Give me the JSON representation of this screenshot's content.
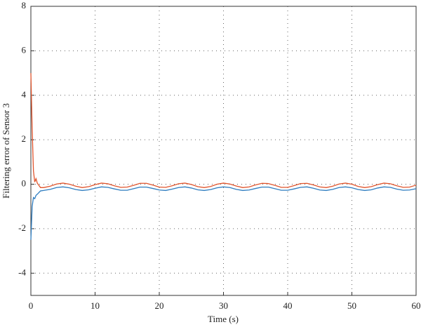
{
  "chart_data": {
    "type": "line",
    "xlabel": "Time (s)",
    "ylabel": "Filtering error of Sensor 3",
    "x": [
      0,
      0.2,
      0.4,
      0.6,
      0.8,
      1,
      1.5,
      2,
      3,
      4,
      5,
      6,
      7,
      8,
      9,
      10,
      11,
      12,
      13,
      14,
      15,
      16,
      17,
      18,
      19,
      20,
      21,
      22,
      23,
      24,
      25,
      26,
      27,
      28,
      29,
      30,
      31,
      32,
      33,
      34,
      35,
      36,
      37,
      38,
      39,
      40,
      41,
      42,
      43,
      44,
      45,
      46,
      47,
      48,
      49,
      50,
      51,
      52,
      53,
      54,
      55,
      56,
      57,
      58,
      59,
      60
    ],
    "series": [
      {
        "color": "#e0542c",
        "values": [
          5,
          2.5,
          0.6,
          0.1,
          0.25,
          0.05,
          -0.15,
          -0.15,
          -0.09,
          0.01,
          0.05,
          0.0,
          -0.09,
          -0.15,
          -0.11,
          -0.02,
          0.05,
          0.02,
          -0.07,
          -0.14,
          -0.13,
          -0.05,
          0.04,
          0.04,
          -0.04,
          -0.13,
          -0.14,
          -0.07,
          0.02,
          0.05,
          -0.01,
          -0.11,
          -0.15,
          -0.1,
          0.0,
          0.05,
          0.01,
          -0.08,
          -0.15,
          -0.12,
          -0.03,
          0.04,
          0.03,
          -0.05,
          -0.14,
          -0.14,
          -0.06,
          0.03,
          0.04,
          -0.03,
          -0.12,
          -0.15,
          -0.09,
          0.01,
          0.05,
          0.0,
          -0.1,
          -0.15,
          -0.11,
          -0.02,
          0.05,
          0.02,
          -0.07,
          -0.14,
          -0.13,
          -0.04
        ]
      },
      {
        "color": "#2e7dc0",
        "values": [
          -2.5,
          -1.0,
          -0.6,
          -0.65,
          -0.5,
          -0.45,
          -0.3,
          -0.28,
          -0.23,
          -0.15,
          -0.12,
          -0.16,
          -0.24,
          -0.28,
          -0.25,
          -0.18,
          -0.12,
          -0.14,
          -0.21,
          -0.27,
          -0.27,
          -0.2,
          -0.13,
          -0.13,
          -0.19,
          -0.26,
          -0.28,
          -0.22,
          -0.15,
          -0.12,
          -0.17,
          -0.25,
          -0.28,
          -0.24,
          -0.16,
          -0.12,
          -0.15,
          -0.23,
          -0.28,
          -0.26,
          -0.19,
          -0.13,
          -0.13,
          -0.2,
          -0.27,
          -0.27,
          -0.21,
          -0.14,
          -0.12,
          -0.18,
          -0.26,
          -0.28,
          -0.23,
          -0.15,
          -0.12,
          -0.16,
          -0.24,
          -0.28,
          -0.25,
          -0.17,
          -0.12,
          -0.14,
          -0.22,
          -0.27,
          -0.26,
          -0.2
        ]
      }
    ],
    "xlim": [
      0,
      60
    ],
    "xticks": [
      0,
      10,
      20,
      30,
      40,
      50,
      60
    ],
    "ylim": [
      -5,
      8
    ],
    "yticks": [
      -4,
      -2,
      0,
      2,
      4,
      6,
      8
    ],
    "grid": true
  }
}
